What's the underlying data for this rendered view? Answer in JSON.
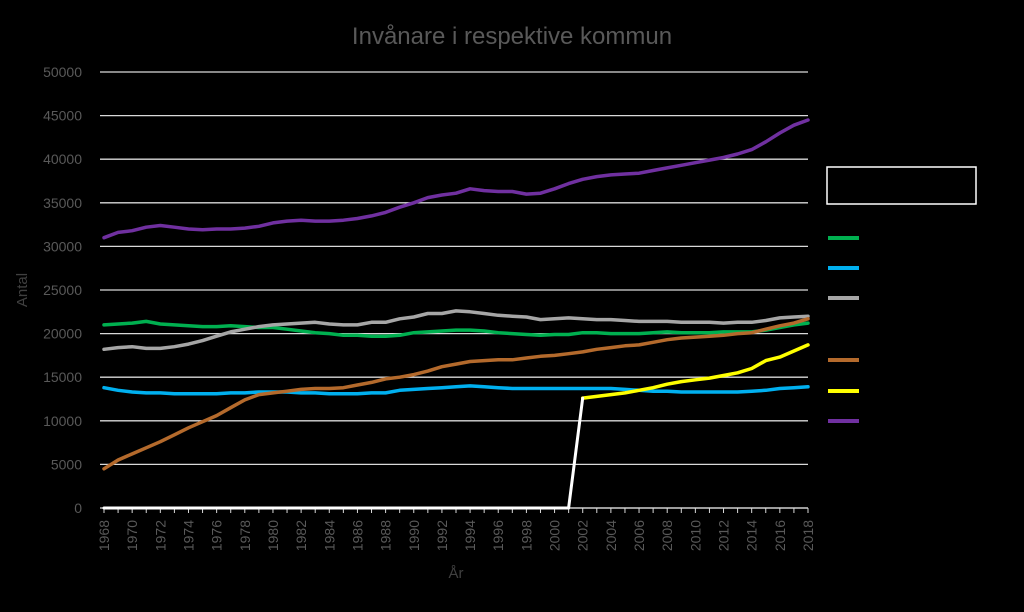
{
  "chart_data": {
    "type": "line",
    "title": "Invånare i respektive kommun",
    "xlabel": "År",
    "ylabel": "Antal",
    "ylim": [
      0,
      50000
    ],
    "yticks": [
      0,
      5000,
      10000,
      15000,
      20000,
      25000,
      30000,
      35000,
      40000,
      45000,
      50000
    ],
    "xticks": [
      "1968",
      "1970",
      "1972",
      "1974",
      "1976",
      "1978",
      "1980",
      "1982",
      "1984",
      "1986",
      "1988",
      "1990",
      "1992",
      "1994",
      "1996",
      "1998",
      "2000",
      "2002",
      "2004",
      "2006",
      "2008",
      "2010",
      "2012",
      "2014",
      "2016",
      "2018"
    ],
    "grid": true,
    "legend": "right",
    "x": [
      1968,
      1969,
      1970,
      1971,
      1972,
      1973,
      1974,
      1975,
      1976,
      1977,
      1978,
      1979,
      1980,
      1981,
      1982,
      1983,
      1984,
      1985,
      1986,
      1987,
      1988,
      1989,
      1990,
      1991,
      1992,
      1993,
      1994,
      1995,
      1996,
      1997,
      1998,
      1999,
      2000,
      2001,
      2002,
      2003,
      2004,
      2005,
      2006,
      2007,
      2008,
      2009,
      2010,
      2011,
      2012,
      2013,
      2014,
      2015,
      2016,
      2017,
      2018
    ],
    "series": [
      {
        "color": "#00b050",
        "values": [
          21000,
          21100,
          21200,
          21400,
          21100,
          21000,
          20900,
          20800,
          20800,
          20900,
          20800,
          20700,
          20700,
          20500,
          20300,
          20100,
          20000,
          19800,
          19800,
          19700,
          19700,
          19800,
          20100,
          20200,
          20300,
          20400,
          20400,
          20300,
          20100,
          20000,
          19900,
          19800,
          19900,
          19900,
          20100,
          20100,
          20000,
          20000,
          20000,
          20100,
          20200,
          20100,
          20100,
          20100,
          20200,
          20200,
          20200,
          20400,
          20700,
          21000,
          21200
        ]
      },
      {
        "color": "#00b0f0",
        "values": [
          13800,
          13500,
          13300,
          13200,
          13200,
          13100,
          13100,
          13100,
          13100,
          13200,
          13200,
          13300,
          13300,
          13300,
          13200,
          13200,
          13100,
          13100,
          13100,
          13200,
          13200,
          13500,
          13600,
          13700,
          13800,
          13900,
          14000,
          13900,
          13800,
          13700,
          13700,
          13700,
          13700,
          13700,
          13700,
          13700,
          13700,
          13600,
          13500,
          13400,
          13400,
          13300,
          13300,
          13300,
          13300,
          13300,
          13400,
          13500,
          13700,
          13800,
          13900
        ]
      },
      {
        "color": "#a6a6a6",
        "values": [
          18200,
          18400,
          18500,
          18300,
          18300,
          18500,
          18800,
          19200,
          19700,
          20200,
          20500,
          20800,
          21000,
          21100,
          21200,
          21300,
          21100,
          21000,
          21000,
          21300,
          21300,
          21700,
          21900,
          22300,
          22300,
          22600,
          22500,
          22300,
          22100,
          22000,
          21900,
          21600,
          21700,
          21800,
          21700,
          21600,
          21600,
          21500,
          21400,
          21400,
          21400,
          21300,
          21300,
          21300,
          21200,
          21300,
          21300,
          21500,
          21800,
          21900,
          22000
        ]
      },
      {
        "color": "#b46a2c",
        "values": [
          4500,
          5500,
          6200,
          6900,
          7600,
          8400,
          9200,
          9900,
          10600,
          11500,
          12400,
          13000,
          13200,
          13400,
          13600,
          13700,
          13700,
          13800,
          14100,
          14400,
          14800,
          15000,
          15300,
          15700,
          16200,
          16500,
          16800,
          16900,
          17000,
          17000,
          17200,
          17400,
          17500,
          17700,
          17900,
          18200,
          18400,
          18600,
          18700,
          19000,
          19300,
          19500,
          19600,
          19700,
          19800,
          20000,
          20100,
          20500,
          20900,
          21200,
          21700
        ]
      },
      {
        "color": "#ffff00",
        "values": [
          null,
          null,
          null,
          null,
          null,
          null,
          null,
          null,
          null,
          null,
          null,
          null,
          null,
          null,
          null,
          null,
          null,
          null,
          null,
          null,
          null,
          null,
          null,
          null,
          null,
          null,
          null,
          null,
          null,
          null,
          null,
          null,
          null,
          null,
          12600,
          12800,
          13000,
          13200,
          13500,
          13800,
          14200,
          14500,
          14700,
          14900,
          15200,
          15500,
          16000,
          16900,
          17300,
          18000,
          18700
        ]
      },
      {
        "color": "#7030a0",
        "values": [
          31000,
          31600,
          31800,
          32200,
          32400,
          32200,
          32000,
          31900,
          32000,
          32000,
          32100,
          32300,
          32700,
          32900,
          33000,
          32900,
          32900,
          33000,
          33200,
          33500,
          33900,
          34500,
          35000,
          35600,
          35900,
          36100,
          36600,
          36400,
          36300,
          36300,
          36000,
          36100,
          36600,
          37200,
          37700,
          38000,
          38200,
          38300,
          38400,
          38700,
          39000,
          39300,
          39600,
          39900,
          40200,
          40600,
          41100,
          42000,
          43000,
          43900,
          44500
        ]
      },
      {
        "color": "#ffffff",
        "values": [
          0,
          0,
          0,
          0,
          0,
          0,
          0,
          0,
          0,
          0,
          0,
          0,
          0,
          0,
          0,
          0,
          0,
          0,
          0,
          0,
          0,
          0,
          0,
          0,
          0,
          0,
          0,
          0,
          0,
          0,
          0,
          0,
          0,
          0,
          12600,
          null,
          null,
          null,
          null,
          null,
          null,
          null,
          null,
          null,
          null,
          null,
          null,
          null,
          null,
          null,
          null
        ]
      }
    ],
    "legend_box_color": "#ffffff"
  }
}
